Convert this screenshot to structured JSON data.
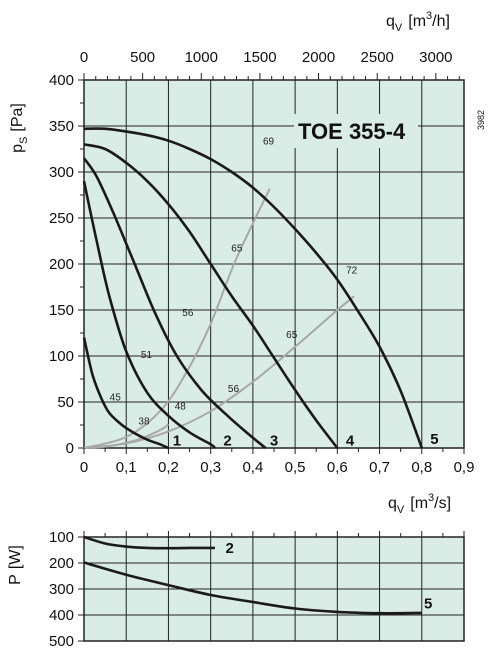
{
  "chart_data": [
    {
      "type": "line",
      "title": "TOE 355-4",
      "code": "3982",
      "xlabel_top": {
        "main": "q",
        "sub": "V",
        "unit_pre": "[m",
        "unit_sup": "3",
        "unit_post": "/h]"
      },
      "xlabel_bottom": {
        "main": "q",
        "sub": "V",
        "unit_pre": "[m",
        "unit_sup": "3",
        "unit_post": "/s]"
      },
      "ylabel": {
        "main": "p",
        "sub": "S",
        "unit": "[Pa]"
      },
      "xlim": [
        0,
        0.9
      ],
      "ylim": [
        0,
        400
      ],
      "top_xlim": [
        0,
        3240
      ],
      "grid": true,
      "x_ticks": [
        "0",
        "0,1",
        "0,2",
        "0,3",
        "0,4",
        "0,5",
        "0,6",
        "0,7",
        "0,8",
        "0,9"
      ],
      "x_tick_values": [
        0,
        0.1,
        0.2,
        0.3,
        0.4,
        0.5,
        0.6,
        0.7,
        0.8,
        0.9
      ],
      "top_x_ticks": [
        "0",
        "500",
        "1000",
        "1500",
        "2000",
        "2500",
        "3000"
      ],
      "top_x_tick_values": [
        0,
        500,
        1000,
        1500,
        2000,
        2500,
        3000
      ],
      "y_ticks": [
        "0",
        "50",
        "100",
        "150",
        "200",
        "250",
        "300",
        "350",
        "400"
      ],
      "y_tick_values": [
        0,
        50,
        100,
        150,
        200,
        250,
        300,
        350,
        400
      ],
      "series": [
        {
          "name": "1",
          "x": [
            0,
            0.02,
            0.04,
            0.06,
            0.09,
            0.12,
            0.15,
            0.18,
            0.2
          ],
          "y": [
            120,
            80,
            55,
            38,
            25,
            16,
            9,
            4,
            0
          ]
        },
        {
          "name": "2",
          "x": [
            0,
            0.03,
            0.06,
            0.1,
            0.15,
            0.2,
            0.25,
            0.3,
            0.31
          ],
          "y": [
            290,
            225,
            165,
            105,
            60,
            35,
            17,
            4,
            0
          ]
        },
        {
          "name": "3",
          "x": [
            0,
            0.03,
            0.07,
            0.12,
            0.17,
            0.22,
            0.28,
            0.34,
            0.39,
            0.43
          ],
          "y": [
            315,
            295,
            255,
            200,
            145,
            100,
            62,
            35,
            15,
            0
          ]
        },
        {
          "name": "4",
          "x": [
            0,
            0.05,
            0.1,
            0.15,
            0.2,
            0.25,
            0.3,
            0.35,
            0.4,
            0.45,
            0.5,
            0.55,
            0.6
          ],
          "y": [
            330,
            325,
            310,
            290,
            265,
            235,
            200,
            165,
            133,
            98,
            63,
            30,
            0
          ]
        },
        {
          "name": "5",
          "x": [
            0,
            0.05,
            0.1,
            0.15,
            0.2,
            0.25,
            0.3,
            0.35,
            0.4,
            0.45,
            0.5,
            0.55,
            0.6,
            0.65,
            0.7,
            0.75,
            0.8
          ],
          "y": [
            347,
            347,
            344,
            340,
            334,
            325,
            314,
            300,
            283,
            262,
            238,
            212,
            183,
            148,
            110,
            62,
            0
          ]
        }
      ],
      "efficiency_curves": [
        {
          "x": [
            0,
            0.06,
            0.12,
            0.16,
            0.19,
            0.2
          ],
          "y": [
            0,
            2,
            8,
            15,
            22,
            26
          ]
        },
        {
          "x": [
            0,
            0.1,
            0.18,
            0.24,
            0.3,
            0.36,
            0.44
          ],
          "y": [
            0,
            12,
            40,
            80,
            135,
            205,
            282
          ]
        },
        {
          "x": [
            0,
            0.1,
            0.2,
            0.3,
            0.4,
            0.5,
            0.6,
            0.64
          ],
          "y": [
            0,
            5,
            18,
            40,
            72,
            110,
            150,
            165
          ]
        }
      ],
      "annotations": [
        {
          "text": "45",
          "x": 0.074,
          "y": 55
        },
        {
          "text": "38",
          "x": 0.142,
          "y": 29
        },
        {
          "text": "51",
          "x": 0.148,
          "y": 101
        },
        {
          "text": "48",
          "x": 0.228,
          "y": 45
        },
        {
          "text": "56",
          "x": 0.246,
          "y": 147
        },
        {
          "text": "56",
          "x": 0.354,
          "y": 64
        },
        {
          "text": "65",
          "x": 0.362,
          "y": 217
        },
        {
          "text": "65",
          "x": 0.492,
          "y": 123
        },
        {
          "text": "69",
          "x": 0.437,
          "y": 333
        },
        {
          "text": "72",
          "x": 0.634,
          "y": 193
        }
      ],
      "series_label_positions": [
        {
          "text": "1",
          "x": 0.22,
          "y": 8
        },
        {
          "text": "2",
          "x": 0.34,
          "y": 8
        },
        {
          "text": "3",
          "x": 0.45,
          "y": 8
        },
        {
          "text": "4",
          "x": 0.63,
          "y": 8
        },
        {
          "text": "5",
          "x": 0.83,
          "y": 10
        }
      ]
    },
    {
      "type": "line",
      "ylabel": {
        "main": "P",
        "unit": "[W]"
      },
      "xlim": [
        0,
        0.9
      ],
      "ylim": [
        100,
        500
      ],
      "y_inverted": true,
      "grid": true,
      "y_ticks": [
        "100",
        "200",
        "300",
        "400",
        "500"
      ],
      "y_tick_values": [
        100,
        200,
        300,
        400,
        500
      ],
      "series": [
        {
          "name": "2",
          "x": [
            0,
            0.05,
            0.1,
            0.15,
            0.2,
            0.25,
            0.31
          ],
          "y": [
            100,
            125,
            137,
            142,
            143,
            142,
            142
          ]
        },
        {
          "name": "5",
          "x": [
            0,
            0.1,
            0.2,
            0.3,
            0.4,
            0.5,
            0.6,
            0.7,
            0.8
          ],
          "y": [
            198,
            245,
            285,
            323,
            350,
            375,
            388,
            393,
            392
          ]
        }
      ],
      "series_label_positions": [
        {
          "text": "2",
          "x": 0.345,
          "y": 142
        },
        {
          "text": "5",
          "x": 0.815,
          "y": 355
        }
      ]
    }
  ]
}
